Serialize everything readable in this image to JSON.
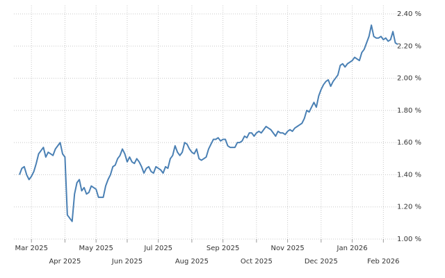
{
  "chart_data": {
    "type": "line",
    "categories": [
      null,
      null,
      null,
      null,
      null,
      "Mar 2025",
      null,
      null,
      null,
      null,
      null,
      null,
      null,
      null,
      null,
      null,
      null,
      null,
      null,
      "Apr 2025",
      null,
      null,
      null,
      null,
      null,
      null,
      null,
      null,
      null,
      null,
      null,
      null,
      "May 2025",
      null,
      null,
      null,
      null,
      null,
      null,
      null,
      null,
      null,
      null,
      null,
      null,
      "Jun 2025",
      null,
      null,
      null,
      null,
      null,
      null,
      null,
      null,
      null,
      null,
      null,
      null,
      "Jul 2025",
      null,
      null,
      null,
      null,
      null,
      null,
      null,
      null,
      null,
      null,
      null,
      null,
      null,
      "Aug 2025",
      null,
      null,
      null,
      null,
      null,
      null,
      null,
      null,
      null,
      null,
      null,
      null,
      "Sep 2025",
      null,
      null,
      null,
      null,
      null,
      null,
      null,
      null,
      null,
      null,
      null,
      null,
      null,
      "Oct 2025",
      null,
      null,
      null,
      null,
      null,
      null,
      null,
      null,
      null,
      null,
      null,
      null,
      "Nov 2025",
      null,
      null,
      null,
      null,
      null,
      null,
      null,
      null,
      null,
      null,
      null,
      null,
      null,
      "Dec 2025",
      null,
      null,
      null,
      null,
      null,
      null,
      null,
      null,
      null,
      null,
      null,
      null,
      "Jan 2026",
      null,
      null,
      null,
      null,
      null,
      null,
      null,
      null,
      null,
      null,
      null,
      null,
      "Feb 2026",
      null,
      null,
      null,
      null,
      null,
      null
    ],
    "values": [
      1.4,
      1.44,
      1.45,
      1.4,
      1.37,
      1.39,
      1.42,
      1.47,
      1.53,
      1.55,
      1.57,
      1.51,
      1.54,
      1.53,
      1.52,
      1.56,
      1.58,
      1.6,
      1.53,
      1.51,
      1.15,
      1.13,
      1.11,
      1.28,
      1.35,
      1.37,
      1.3,
      1.32,
      1.28,
      1.29,
      1.33,
      1.32,
      1.31,
      1.26,
      1.26,
      1.26,
      1.33,
      1.37,
      1.4,
      1.45,
      1.46,
      1.5,
      1.52,
      1.56,
      1.53,
      1.48,
      1.51,
      1.48,
      1.47,
      1.5,
      1.48,
      1.45,
      1.41,
      1.44,
      1.45,
      1.42,
      1.41,
      1.45,
      1.44,
      1.43,
      1.41,
      1.45,
      1.44,
      1.5,
      1.52,
      1.58,
      1.54,
      1.52,
      1.54,
      1.6,
      1.59,
      1.56,
      1.54,
      1.53,
      1.56,
      1.5,
      1.49,
      1.5,
      1.51,
      1.56,
      1.59,
      1.62,
      1.62,
      1.63,
      1.61,
      1.62,
      1.62,
      1.58,
      1.57,
      1.57,
      1.57,
      1.6,
      1.6,
      1.61,
      1.64,
      1.63,
      1.66,
      1.66,
      1.64,
      1.66,
      1.67,
      1.66,
      1.68,
      1.7,
      1.69,
      1.68,
      1.66,
      1.64,
      1.67,
      1.66,
      1.66,
      1.65,
      1.67,
      1.68,
      1.67,
      1.69,
      1.7,
      1.71,
      1.72,
      1.75,
      1.8,
      1.79,
      1.82,
      1.85,
      1.82,
      1.89,
      1.93,
      1.96,
      1.98,
      1.99,
      1.95,
      1.98,
      2.0,
      2.02,
      2.08,
      2.09,
      2.07,
      2.09,
      2.1,
      2.11,
      2.13,
      2.12,
      2.11,
      2.16,
      2.18,
      2.22,
      2.26,
      2.33,
      2.26,
      2.25,
      2.25,
      2.26,
      2.24,
      2.25,
      2.23,
      2.24,
      2.29,
      2.22,
      2.21
    ],
    "color": "#4a80b4",
    "ylim": [
      1.0,
      2.4
    ],
    "yticks": [
      {
        "value": 1.0,
        "label": "1.00 %"
      },
      {
        "value": 1.2,
        "label": "1.20 %"
      },
      {
        "value": 1.4,
        "label": "1.40 %"
      },
      {
        "value": 1.6,
        "label": "1.60 %"
      },
      {
        "value": 1.8,
        "label": "1.80 %"
      },
      {
        "value": 2.0,
        "label": "2.00 %"
      },
      {
        "value": 2.2,
        "label": "2.20 %"
      },
      {
        "value": 2.4,
        "label": "2.40 %"
      }
    ],
    "grid": true
  }
}
